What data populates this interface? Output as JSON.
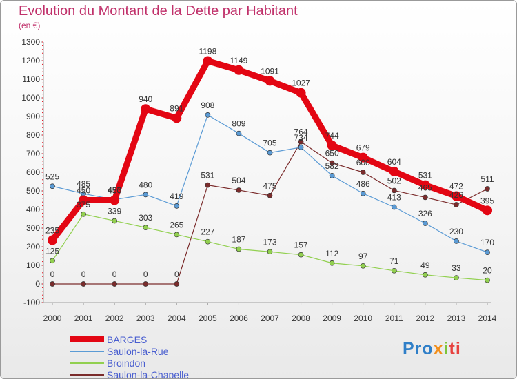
{
  "chart_data": {
    "type": "line",
    "title": "Evolution du Montant de la Dette par Habitant",
    "subtitle": "(en €)",
    "xlabel": "",
    "ylabel": "",
    "x": [
      "2000",
      "2001",
      "2002",
      "2003",
      "2004",
      "2005",
      "2006",
      "2007",
      "2008",
      "2009",
      "2010",
      "2011",
      "2012",
      "2013",
      "2014"
    ],
    "ylim": [
      -100,
      1300
    ],
    "yticks": [
      -100,
      0,
      100,
      200,
      300,
      400,
      500,
      600,
      700,
      800,
      900,
      1000,
      1100,
      1200,
      1300
    ],
    "grid": false,
    "legend_position": "bottom-left",
    "series": [
      {
        "name": "BARGES",
        "color": "#e30613",
        "values": [
          235,
          450,
          450,
          940,
          891,
          1198,
          1149,
          1091,
          1027,
          744,
          679,
          604,
          531,
          472,
          395
        ]
      },
      {
        "name": "Saulon-la-Rue",
        "color": "#5b9bd5",
        "values": [
          525,
          485,
          453,
          480,
          419,
          908,
          809,
          705,
          734,
          582,
          486,
          413,
          326,
          230,
          170
        ]
      },
      {
        "name": "Broindon",
        "color": "#92d050",
        "values": [
          125,
          375,
          339,
          303,
          265,
          227,
          187,
          173,
          157,
          112,
          97,
          71,
          49,
          33,
          20
        ]
      },
      {
        "name": "Saulon-la-Chapelle",
        "color": "#7b2c2c",
        "values": [
          0,
          0,
          0,
          0,
          0,
          531,
          504,
          475,
          764,
          650,
          600,
          502,
          465,
          426,
          511
        ]
      }
    ]
  },
  "logo": {
    "p1": "Pro",
    "p2": "x",
    "p3": "i",
    "p4": "ti"
  }
}
